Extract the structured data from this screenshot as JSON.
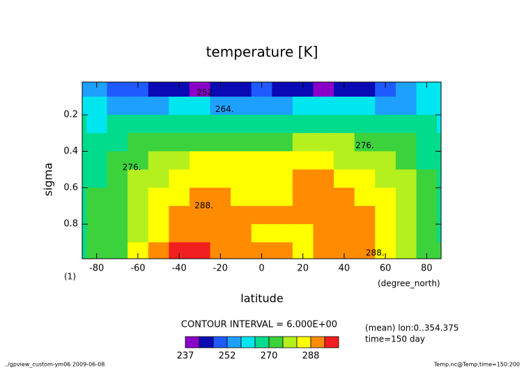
{
  "chart_data": {
    "type": "contour",
    "title": "temperature [K]",
    "x_label": "latitude",
    "y_label": "sigma",
    "x_unit": "(degree_north)",
    "y_unit": "(1)",
    "x": [
      -90,
      -80,
      -70,
      -60,
      -50,
      -40,
      -30,
      -20,
      -10,
      0,
      10,
      20,
      30,
      40,
      50,
      60,
      70,
      80,
      90
    ],
    "y": [
      0.05,
      0.15,
      0.25,
      0.35,
      0.45,
      0.55,
      0.65,
      0.75,
      0.85,
      0.95
    ],
    "z": [
      [
        256,
        254,
        250,
        246,
        243,
        241,
        239,
        242,
        245,
        246,
        244,
        241,
        239,
        241,
        245,
        250,
        254,
        258,
        260
      ],
      [
        260,
        258,
        256,
        256,
        257,
        258,
        258,
        257,
        255,
        255,
        256,
        258,
        258,
        258,
        258,
        257,
        257,
        260,
        262
      ],
      [
        264,
        263,
        264,
        266,
        267,
        268,
        268,
        267,
        265,
        264,
        266,
        268,
        268,
        268,
        267,
        266,
        265,
        264,
        263
      ],
      [
        266,
        266,
        268,
        271,
        273,
        274,
        275,
        275,
        273,
        272,
        274,
        276,
        277,
        277,
        275,
        273,
        270,
        267,
        266
      ],
      [
        267,
        268,
        270,
        274,
        277,
        280,
        282,
        283,
        283,
        283,
        283,
        283,
        282,
        281,
        279,
        276,
        273,
        269,
        267
      ],
      [
        268,
        269,
        272,
        276,
        280,
        284,
        285,
        286,
        285,
        285,
        286,
        289,
        288,
        286,
        284,
        280,
        276,
        271,
        268
      ],
      [
        268,
        270,
        273,
        278,
        283,
        287,
        288,
        288,
        287,
        286,
        287,
        289,
        289,
        289,
        287,
        283,
        278,
        272,
        269
      ],
      [
        268,
        270,
        274,
        279,
        285,
        289,
        290,
        291,
        290,
        288,
        288,
        290,
        291,
        290,
        289,
        285,
        279,
        273,
        269
      ],
      [
        268,
        270,
        274,
        280,
        286,
        292,
        291,
        290,
        289,
        287,
        286,
        287,
        290,
        291,
        290,
        286,
        280,
        273,
        269
      ],
      [
        268,
        270,
        275,
        282,
        288,
        296,
        295,
        291,
        290,
        289,
        288,
        287,
        290,
        291,
        289,
        286,
        281,
        274,
        270
      ]
    ],
    "xlim": [
      -87,
      87
    ],
    "ylim": [
      0.02,
      0.99
    ],
    "invert_y": true,
    "xticks": [
      -80,
      -60,
      -40,
      -20,
      0,
      20,
      40,
      60,
      80
    ],
    "yticks": [
      0.2,
      0.4,
      0.6,
      0.8
    ],
    "levels": [
      237,
      240,
      246,
      252,
      258,
      264,
      270,
      276,
      282,
      288,
      294,
      300
    ],
    "colors": [
      "#8a00c8",
      "#0a0ab4",
      "#1e5aff",
      "#1ea0ff",
      "#00e6f0",
      "#00dc8c",
      "#3cd23c",
      "#b4f01e",
      "#ffff00",
      "#ff8c00",
      "#f01e1e"
    ],
    "colorbar_ticks": [
      237,
      252,
      270,
      288
    ],
    "contour_labels": [
      {
        "text": "252.",
        "lat": -27,
        "sigma": 0.08
      },
      {
        "text": "264.",
        "lat": -18,
        "sigma": 0.17
      },
      {
        "text": "276.",
        "lat": -63,
        "sigma": 0.49
      },
      {
        "text": "276.",
        "lat": 50,
        "sigma": 0.37
      },
      {
        "text": "288.",
        "lat": -28,
        "sigma": 0.7
      },
      {
        "text": "288.",
        "lat": 55,
        "sigma": 0.96
      }
    ],
    "contour_interval": "CONTOUR INTERVAL = 6.000E+00",
    "info": [
      "(mean) lon:0..354.375",
      "time=150 day"
    ],
    "footer_left": "../gpview_custom-ym06  2009-06-08",
    "footer_right": "Temp.nc@Temp,time=150:200"
  }
}
